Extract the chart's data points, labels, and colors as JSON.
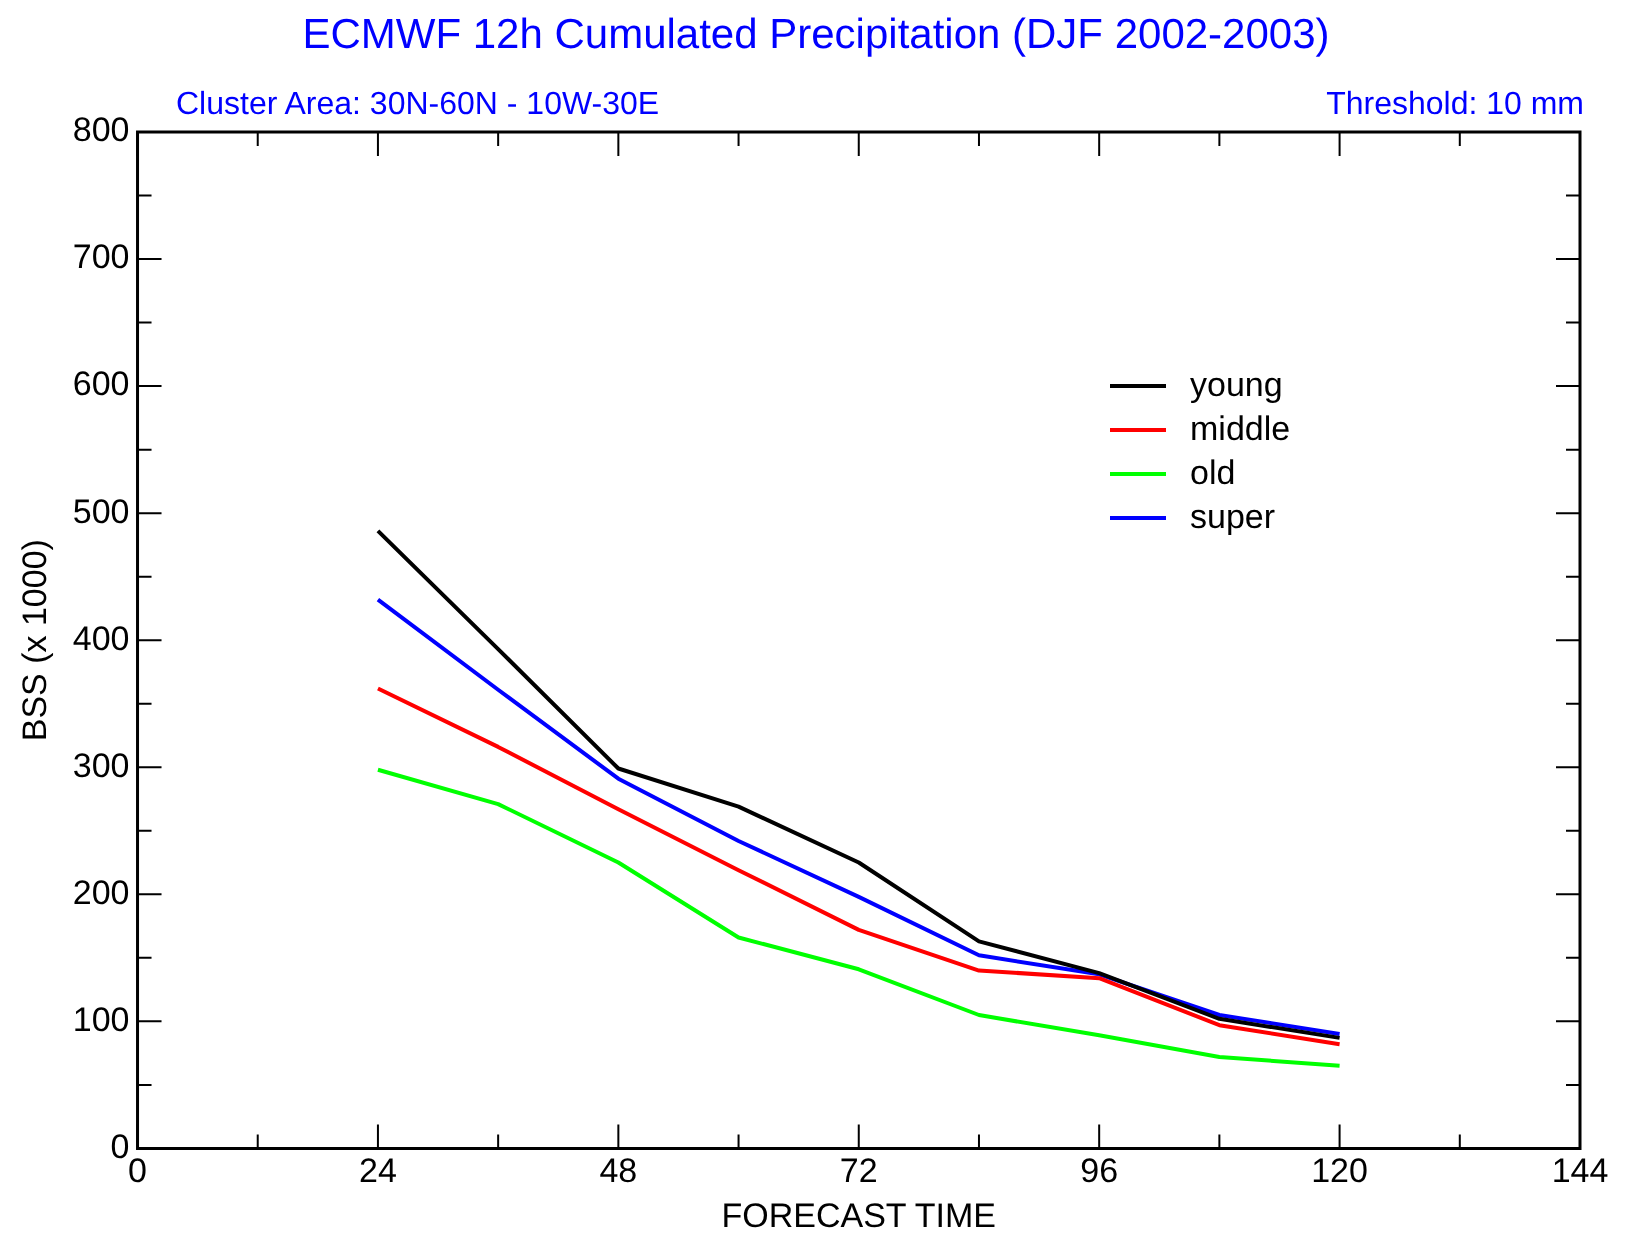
{
  "chart_data": {
    "type": "line",
    "title": "ECMWF 12h Cumulated Precipitation  (DJF 2002-2003)",
    "subtitle": "Cluster Area: 30N-60N - 10W-30E",
    "annotations": [
      "Threshold: 10 mm"
    ],
    "xlabel": "FORECAST TIME",
    "ylabel": "BSS (x 1000)",
    "x": [
      24,
      36,
      48,
      60,
      72,
      84,
      96,
      108,
      120
    ],
    "series": [
      {
        "name": "young",
        "color": "#000000",
        "values": [
          486,
          393,
          299,
          269,
          225,
          163,
          138,
          102,
          87
        ]
      },
      {
        "name": "middle",
        "color": "#ff0000",
        "values": [
          362,
          316,
          267,
          219,
          172,
          140,
          134,
          97,
          82
        ]
      },
      {
        "name": "old",
        "color": "#00ff00",
        "values": [
          298,
          271,
          225,
          166,
          141,
          105,
          89,
          72,
          65
        ]
      },
      {
        "name": "super",
        "color": "#0000ff",
        "values": [
          432,
          361,
          291,
          242,
          198,
          152,
          137,
          105,
          90
        ]
      }
    ],
    "xlim": [
      0,
      144
    ],
    "xticks": [
      0,
      24,
      48,
      72,
      96,
      120,
      144
    ],
    "ylim": [
      0,
      800
    ],
    "yticks": [
      0,
      100,
      200,
      300,
      400,
      500,
      600,
      700,
      800
    ],
    "grid": false,
    "legend": "top right",
    "marker": "none",
    "line_style": "solid"
  }
}
